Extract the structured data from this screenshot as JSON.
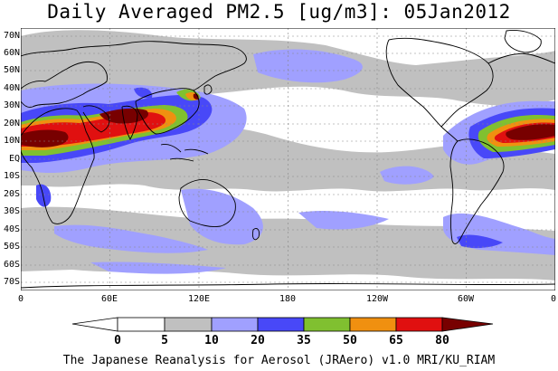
{
  "title": "Daily Averaged PM2.5 [ug/m3]: 05Jan2012",
  "footer": "The Japanese Reanalysis for Aerosol (JRAero) v1.0 MRI/KU_RIAM",
  "lat_labels": [
    "70N",
    "60N",
    "50N",
    "40N",
    "30N",
    "20N",
    "10N",
    "EQ",
    "10S",
    "20S",
    "30S",
    "40S",
    "50S",
    "60S",
    "70S"
  ],
  "lon_labels": [
    "0",
    "60E",
    "120E",
    "180",
    "120W",
    "60W",
    "0"
  ],
  "colorbar": {
    "labels": [
      "0",
      "5",
      "10",
      "20",
      "35",
      "50",
      "65",
      "80"
    ],
    "colors": [
      "#ffffff",
      "#c0c0c0",
      "#a0a0ff",
      "#4848f8",
      "#80c030",
      "#f09010",
      "#e01010",
      "#780000"
    ]
  },
  "colors": {
    "ocean_bg": "#ffffff",
    "coast": "#000000",
    "grid": "#888888"
  }
}
